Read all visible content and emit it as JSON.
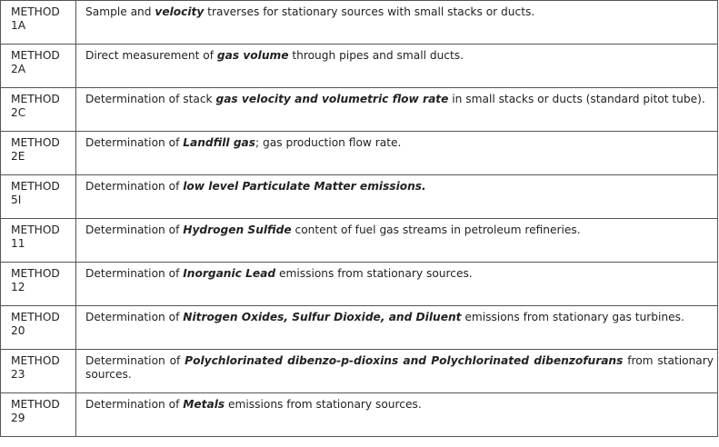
{
  "rows": [
    {
      "label": "METHOD",
      "number": "1A",
      "parts": [
        {
          "t": "Sample and "
        },
        {
          "t": "velocity",
          "e": true
        },
        {
          "t": " traverses for stationary sources with small stacks or ducts."
        }
      ]
    },
    {
      "label": "METHOD",
      "number": "2A",
      "parts": [
        {
          "t": "Direct measurement of "
        },
        {
          "t": "gas volume",
          "e": true
        },
        {
          "t": " through pipes and small ducts."
        }
      ]
    },
    {
      "label": "METHOD",
      "number": "2C",
      "justify": true,
      "parts": [
        {
          "t": "Determination of stack "
        },
        {
          "t": "gas velocity and volumetric flow rate",
          "e": true
        },
        {
          "t": " in small stacks or ducts (standard pitot tube)."
        }
      ]
    },
    {
      "label": "METHOD",
      "number": "2E",
      "parts": [
        {
          "t": "Determination of "
        },
        {
          "t": "Landfill gas",
          "e": true
        },
        {
          "t": "; gas production flow rate."
        }
      ]
    },
    {
      "label": "METHOD",
      "number": "5I",
      "parts": [
        {
          "t": "Determination of "
        },
        {
          "t": "low level Particulate Matter emissions.",
          "e": true
        }
      ]
    },
    {
      "label": "METHOD",
      "number": "11",
      "parts": [
        {
          "t": "Determination of "
        },
        {
          "t": "Hydrogen Sulfide",
          "e": true
        },
        {
          "t": " content of fuel gas streams in petroleum refineries."
        }
      ]
    },
    {
      "label": "METHOD",
      "number": "12",
      "parts": [
        {
          "t": "Determination of "
        },
        {
          "t": "Inorganic Lead",
          "e": true
        },
        {
          "t": " emissions from stationary sources."
        }
      ]
    },
    {
      "label": "METHOD",
      "number": "20",
      "justify": true,
      "parts": [
        {
          "t": "Determination of "
        },
        {
          "t": "Nitrogen Oxides, Sulfur Dioxide, and Diluent",
          "e": true
        },
        {
          "t": " emissions from stationary gas turbines."
        }
      ]
    },
    {
      "label": "METHOD",
      "number": "23",
      "justify": true,
      "parts": [
        {
          "t": "Determination of "
        },
        {
          "t": "Polychlorinated dibenzo-p-dioxins and Polychlorinated dibenzofurans",
          "e": true
        },
        {
          "t": " from stationary sources."
        }
      ]
    },
    {
      "label": "METHOD",
      "number": "29",
      "parts": [
        {
          "t": "Determination of "
        },
        {
          "t": "Metals",
          "e": true
        },
        {
          "t": " emissions from stationary sources."
        }
      ]
    }
  ]
}
